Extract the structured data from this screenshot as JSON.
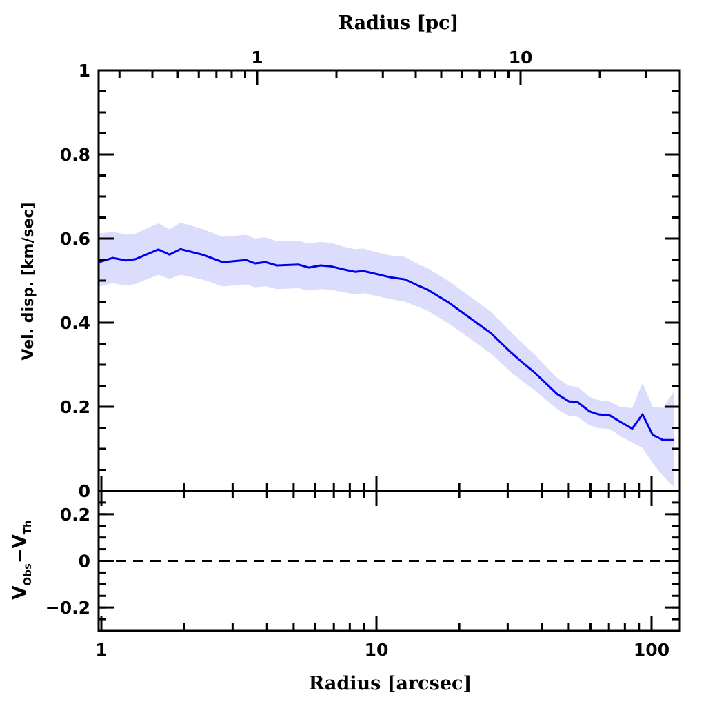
{
  "chart_data": {
    "type": "line",
    "panels": [
      {
        "name": "main",
        "ylabel": "Vel. disp. [km/sec]",
        "ylim": [
          0,
          1
        ],
        "yticks": [
          0,
          0.2,
          0.4,
          0.6,
          0.8,
          1
        ],
        "ytick_labels": [
          "0",
          "0.2",
          "0.4",
          "0.6",
          "0.8",
          "1"
        ],
        "yminor_step": 0.05,
        "top_xlabel": "Radius [pc]",
        "top_xticks_pc": [
          1,
          10
        ],
        "top_xtick_labels": [
          "1",
          "10"
        ],
        "top_xminor_pc": [
          0.3,
          0.4,
          0.5,
          0.6,
          0.7,
          0.8,
          0.9,
          2,
          3,
          4,
          5,
          6,
          7,
          8,
          9,
          20,
          30
        ],
        "series": [
          {
            "name": "velocity dispersion",
            "color": "#0000ee",
            "band_color": "#dcdcfc",
            "x": [
              0.98,
              1.1,
              1.23,
              1.33,
              1.61,
              1.77,
              1.94,
              2.35,
              2.76,
              3.36,
              3.62,
              3.95,
              4.35,
              5.21,
              5.68,
              6.26,
              6.83,
              7.67,
              8.36,
              8.96,
              9.94,
              11.2,
              12.7,
              14.1,
              15.3,
              18.2,
              21.7,
              26.1,
              30.6,
              34.4,
              37.5,
              45.4,
              50.1,
              53.9,
              59.5,
              64.1,
              70.7,
              77.1,
              85.1,
              92.7,
              101,
              110,
              121
            ],
            "y": [
              0.544,
              0.554,
              0.548,
              0.551,
              0.574,
              0.562,
              0.575,
              0.561,
              0.544,
              0.549,
              0.541,
              0.544,
              0.536,
              0.538,
              0.531,
              0.536,
              0.534,
              0.526,
              0.521,
              0.523,
              0.516,
              0.508,
              0.503,
              0.489,
              0.479,
              0.449,
              0.413,
              0.375,
              0.331,
              0.302,
              0.282,
              0.23,
              0.213,
              0.211,
              0.189,
              0.182,
              0.179,
              0.164,
              0.148,
              0.182,
              0.133,
              0.121,
              0.121
            ],
            "y_upper": [
              0.612,
              0.616,
              0.61,
              0.612,
              0.636,
              0.622,
              0.638,
              0.622,
              0.604,
              0.609,
              0.6,
              0.603,
              0.594,
              0.595,
              0.588,
              0.592,
              0.59,
              0.58,
              0.575,
              0.576,
              0.568,
              0.56,
              0.556,
              0.54,
              0.53,
              0.5,
              0.464,
              0.426,
              0.38,
              0.347,
              0.325,
              0.268,
              0.25,
              0.247,
              0.224,
              0.216,
              0.212,
              0.199,
              0.197,
              0.256,
              0.2,
              0.197,
              0.238
            ],
            "y_lower": [
              0.486,
              0.494,
              0.488,
              0.492,
              0.514,
              0.504,
              0.514,
              0.502,
              0.486,
              0.491,
              0.484,
              0.487,
              0.48,
              0.482,
              0.476,
              0.48,
              0.478,
              0.472,
              0.467,
              0.47,
              0.464,
              0.456,
              0.45,
              0.438,
              0.429,
              0.399,
              0.364,
              0.326,
              0.284,
              0.258,
              0.24,
              0.194,
              0.178,
              0.176,
              0.156,
              0.149,
              0.147,
              0.13,
              0.115,
              0.102,
              0.066,
              0.036,
              0.008
            ]
          }
        ]
      },
      {
        "name": "residual",
        "ylabel_main": "V",
        "ylabel_sub1": "Obs",
        "ylabel_mid": "−V",
        "ylabel_sub2": "Th",
        "ylim": [
          -0.3,
          0.3
        ],
        "yticks": [
          -0.2,
          0,
          0.2
        ],
        "ytick_labels": [
          "−0.2",
          "0",
          "0.2"
        ],
        "yminor_step": 0.05,
        "reference_line": {
          "y": 0,
          "style": "dashed"
        }
      }
    ],
    "xlabel": "Radius [arcsec]",
    "xscale": "log",
    "xlim": [
      0.98,
      126
    ],
    "xticks": [
      1,
      10,
      100
    ],
    "xtick_labels": [
      "1",
      "10",
      "100"
    ],
    "xminor": [
      2,
      3,
      4,
      5,
      6,
      7,
      8,
      9,
      20,
      30,
      40,
      50,
      60,
      70,
      80,
      90
    ],
    "grid": false
  }
}
